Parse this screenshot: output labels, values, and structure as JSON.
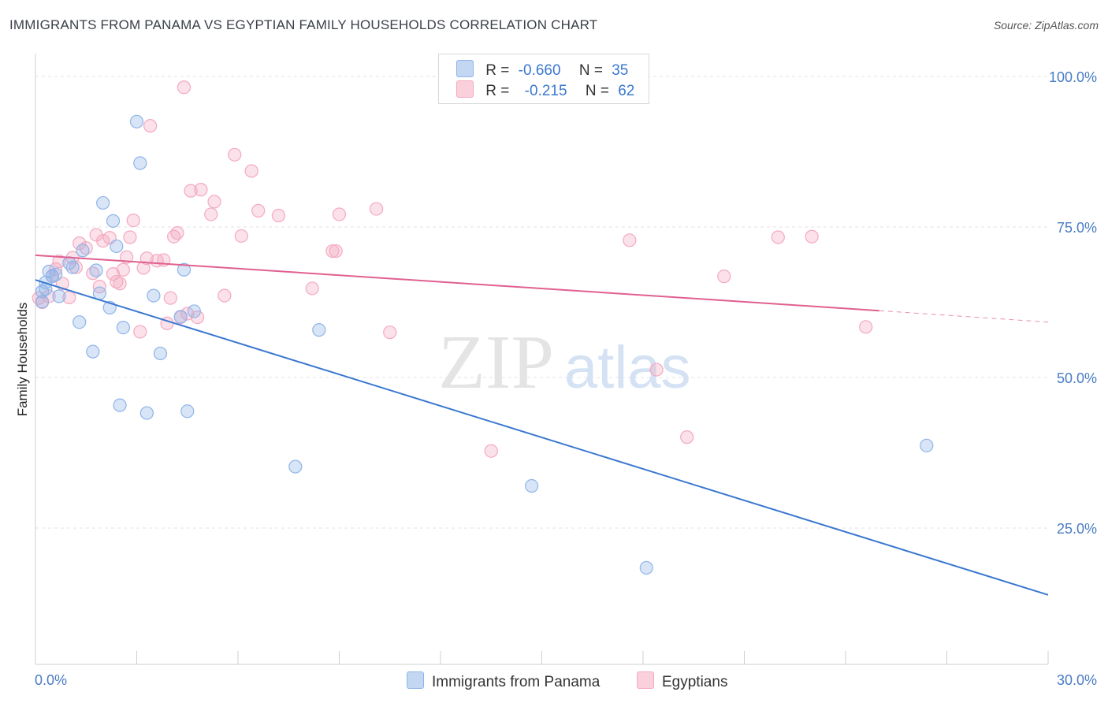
{
  "title": "IMMIGRANTS FROM PANAMA VS EGYPTIAN FAMILY HOUSEHOLDS CORRELATION CHART",
  "source": "Source: ZipAtlas.com",
  "watermark": {
    "zip": "ZIP",
    "atlas": "atlas"
  },
  "legend": {
    "r_label": "R =",
    "n_label": "N =",
    "rows": [
      {
        "r": "-0.660",
        "n": "35"
      },
      {
        "r": "-0.215",
        "n": "62"
      }
    ]
  },
  "chart_data": {
    "type": "scatter",
    "xlabel": "",
    "ylabel": "Family Households",
    "xlim": [
      0,
      30
    ],
    "ylim": [
      0,
      102
    ],
    "x_tick_labels": [
      "0.0%",
      "30.0%"
    ],
    "y_tick_labels": [
      "100.0%",
      "75.0%",
      "50.0%",
      "25.0%"
    ],
    "y_ticks": [
      100,
      75,
      50,
      25
    ],
    "grid": true,
    "legend_position": "top-center",
    "series": [
      {
        "name": "Immigrants from Panama",
        "color": "#8fb4e8",
        "line_color": "#3a78d0",
        "trend": {
          "x": [
            0,
            30
          ],
          "y": [
            66.2,
            13.9
          ]
        },
        "points": [
          [
            0.2,
            64.3
          ],
          [
            0.2,
            62.6
          ],
          [
            0.3,
            64.7
          ],
          [
            0.3,
            65.8
          ],
          [
            0.4,
            67.6
          ],
          [
            0.5,
            66.8
          ],
          [
            0.6,
            67.1
          ],
          [
            0.7,
            63.5
          ],
          [
            1.0,
            69.0
          ],
          [
            1.1,
            68.3
          ],
          [
            1.3,
            59.2
          ],
          [
            1.4,
            71.1
          ],
          [
            1.7,
            54.3
          ],
          [
            1.8,
            67.8
          ],
          [
            1.9,
            64.0
          ],
          [
            2.0,
            79.0
          ],
          [
            2.2,
            61.6
          ],
          [
            2.3,
            76.0
          ],
          [
            2.4,
            71.8
          ],
          [
            2.5,
            45.4
          ],
          [
            2.6,
            58.3
          ],
          [
            3.0,
            92.5
          ],
          [
            3.1,
            85.6
          ],
          [
            3.3,
            44.1
          ],
          [
            3.5,
            63.6
          ],
          [
            3.7,
            54.0
          ],
          [
            4.3,
            60.1
          ],
          [
            4.4,
            67.9
          ],
          [
            4.5,
            44.4
          ],
          [
            4.7,
            61.0
          ],
          [
            7.7,
            35.2
          ],
          [
            8.4,
            57.9
          ],
          [
            14.7,
            32.0
          ],
          [
            18.1,
            18.4
          ],
          [
            26.4,
            38.7
          ]
        ]
      },
      {
        "name": "Egyptians",
        "color": "#f4a9c0",
        "line_color": "#e06090",
        "trend": {
          "x": [
            0,
            25
          ],
          "y": [
            70.3,
            61.1
          ]
        },
        "trend_dashed": {
          "x": [
            25,
            30
          ],
          "y": [
            61.1,
            59.2
          ]
        },
        "points": [
          [
            0.1,
            63.2
          ],
          [
            0.2,
            62.5
          ],
          [
            0.4,
            63.5
          ],
          [
            0.5,
            66.9
          ],
          [
            0.6,
            68.0
          ],
          [
            0.7,
            69.3
          ],
          [
            0.8,
            65.6
          ],
          [
            1.0,
            63.3
          ],
          [
            1.1,
            69.9
          ],
          [
            1.2,
            68.3
          ],
          [
            1.3,
            72.3
          ],
          [
            1.5,
            71.5
          ],
          [
            1.7,
            67.3
          ],
          [
            1.8,
            73.7
          ],
          [
            1.9,
            65.1
          ],
          [
            2.0,
            72.7
          ],
          [
            2.2,
            73.2
          ],
          [
            2.3,
            67.2
          ],
          [
            2.4,
            65.9
          ],
          [
            2.5,
            65.6
          ],
          [
            2.6,
            67.9
          ],
          [
            2.7,
            70.0
          ],
          [
            2.8,
            73.3
          ],
          [
            2.9,
            76.1
          ],
          [
            3.1,
            57.6
          ],
          [
            3.2,
            68.2
          ],
          [
            3.3,
            69.8
          ],
          [
            3.4,
            91.8
          ],
          [
            3.6,
            69.4
          ],
          [
            3.8,
            69.5
          ],
          [
            3.9,
            59.0
          ],
          [
            4.0,
            63.2
          ],
          [
            4.1,
            73.4
          ],
          [
            4.2,
            74.0
          ],
          [
            4.3,
            60.0
          ],
          [
            4.4,
            98.2
          ],
          [
            4.5,
            60.6
          ],
          [
            4.6,
            81.0
          ],
          [
            4.8,
            60.0
          ],
          [
            4.9,
            81.2
          ],
          [
            5.2,
            77.1
          ],
          [
            5.3,
            79.2
          ],
          [
            5.6,
            63.6
          ],
          [
            5.9,
            87.0
          ],
          [
            6.1,
            73.5
          ],
          [
            6.4,
            84.3
          ],
          [
            6.6,
            77.7
          ],
          [
            7.2,
            76.9
          ],
          [
            8.2,
            64.8
          ],
          [
            8.8,
            71.0
          ],
          [
            8.9,
            71.0
          ],
          [
            9.0,
            77.1
          ],
          [
            10.1,
            78.0
          ],
          [
            10.5,
            57.5
          ],
          [
            13.5,
            37.8
          ],
          [
            17.6,
            72.8
          ],
          [
            18.4,
            51.3
          ],
          [
            19.3,
            40.1
          ],
          [
            20.4,
            66.8
          ],
          [
            22.0,
            73.3
          ],
          [
            23.0,
            73.4
          ],
          [
            24.6,
            58.4
          ]
        ]
      }
    ]
  }
}
